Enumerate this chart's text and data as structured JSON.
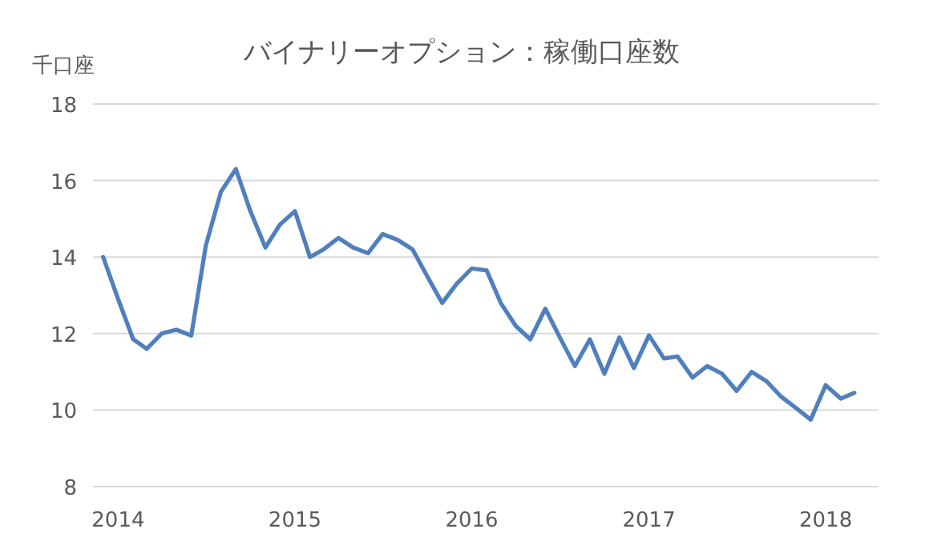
{
  "chart_data": {
    "type": "line",
    "title": "バイナリーオプション：稼働口座数",
    "ylabel": "千口座",
    "x": [
      "2013-12",
      "2014-01",
      "2014-02",
      "2014-03",
      "2014-04",
      "2014-05",
      "2014-06",
      "2014-07",
      "2014-08",
      "2014-09",
      "2014-10",
      "2014-11",
      "2014-12",
      "2015-01",
      "2015-02",
      "2015-03",
      "2015-04",
      "2015-05",
      "2015-06",
      "2015-07",
      "2015-08",
      "2015-09",
      "2015-10",
      "2015-11",
      "2015-12",
      "2016-01",
      "2016-02",
      "2016-03",
      "2016-04",
      "2016-05",
      "2016-06",
      "2016-07",
      "2016-08",
      "2016-09",
      "2016-10",
      "2016-11",
      "2016-12",
      "2017-01",
      "2017-02",
      "2017-03",
      "2017-04",
      "2017-05",
      "2017-06",
      "2017-07",
      "2017-08",
      "2017-09",
      "2017-10",
      "2017-11",
      "2017-12",
      "2018-01",
      "2018-02",
      "2018-03"
    ],
    "series": [
      {
        "color": "#4f7fbe",
        "values": [
          14.0,
          12.9,
          11.85,
          11.6,
          12.0,
          12.1,
          11.95,
          14.3,
          15.7,
          16.3,
          15.2,
          14.25,
          14.85,
          15.2,
          14.0,
          14.2,
          14.5,
          14.25,
          14.1,
          14.6,
          14.45,
          14.2,
          13.5,
          12.8,
          13.3,
          13.7,
          13.65,
          12.8,
          12.2,
          11.85,
          12.65,
          11.9,
          11.15,
          11.85,
          10.95,
          11.9,
          11.1,
          11.95,
          11.35,
          11.4,
          10.85,
          11.15,
          10.95,
          10.5,
          11.0,
          10.75,
          10.35,
          10.05,
          9.75,
          10.65,
          10.3,
          10.45
        ]
      }
    ],
    "xlim": [
      "2013-11-10",
      "2018-04-20"
    ],
    "xticks": [
      "2014",
      "2015",
      "2016",
      "2017",
      "2018"
    ],
    "ylim": [
      8,
      18
    ],
    "yticks": [
      8,
      10,
      12,
      14,
      16,
      18
    ],
    "grid": "y",
    "marker": "none",
    "line_style": "solid"
  }
}
